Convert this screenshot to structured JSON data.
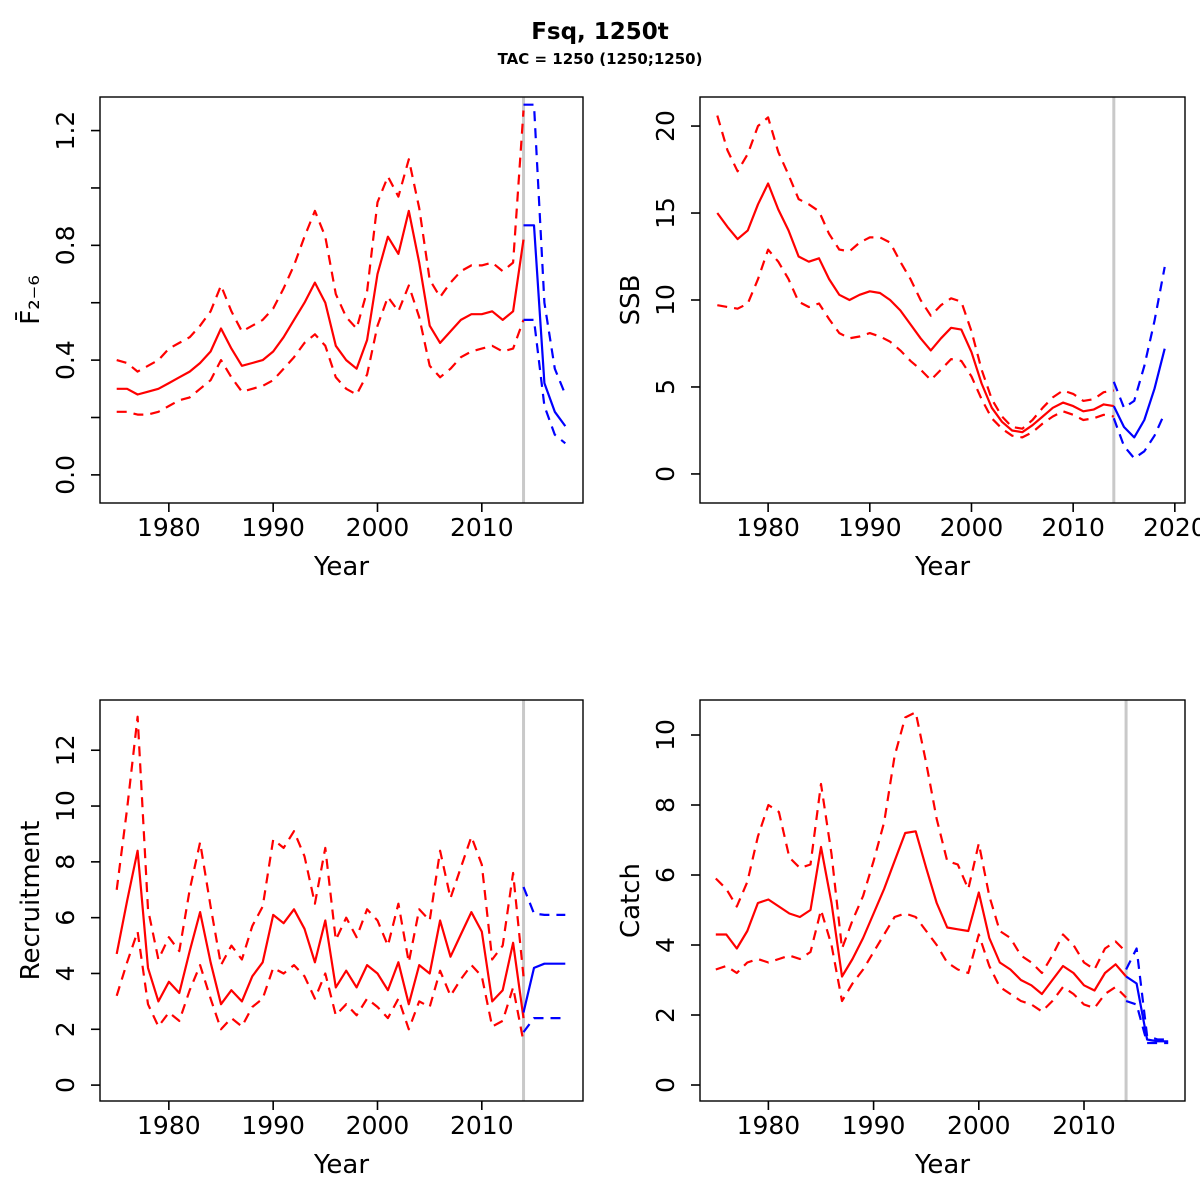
{
  "title": "Fsq, 1250t",
  "subtitle": "TAC = 1250 (1250;1250)",
  "colors": {
    "historic": "#ff0000",
    "forecast": "#0000ff",
    "divider": "#c9c9c9",
    "axis": "#000000",
    "background": "#ffffff"
  },
  "divider_year": 2014,
  "chart_data": [
    {
      "id": "fbar",
      "type": "line",
      "ylabel": "F̄₂₋₆",
      "xlabel": "Year",
      "xlim": [
        1973.4,
        2019.7
      ],
      "ylim": [
        -0.098,
        1.317
      ],
      "grid": false,
      "legend": "none",
      "xticks": [
        1980,
        1990,
        2000,
        2010
      ],
      "xtick_labels": [
        "1980",
        "1990",
        "2000",
        "2010"
      ],
      "yticks": [
        0,
        0.2,
        0.4,
        0.6,
        0.8,
        1.0,
        1.2
      ],
      "ytick_labels": [
        "0.0",
        "",
        "0.4",
        "",
        "0.8",
        "",
        "1.2"
      ],
      "divider_year": 2014,
      "series": [
        {
          "name": "historic-upper",
          "color": "historic",
          "style": "dashed",
          "x0": 1975,
          "y": [
            0.4,
            0.39,
            0.36,
            0.38,
            0.4,
            0.44,
            0.46,
            0.48,
            0.52,
            0.57,
            0.66,
            0.57,
            0.5,
            0.52,
            0.54,
            0.58,
            0.65,
            0.73,
            0.83,
            0.92,
            0.83,
            0.63,
            0.55,
            0.51,
            0.64,
            0.95,
            1.04,
            0.97,
            1.1,
            0.93,
            0.68,
            0.62,
            0.67,
            0.71,
            0.73,
            0.73,
            0.74,
            0.71,
            0.74,
            1.27
          ]
        },
        {
          "name": "historic-lower",
          "color": "historic",
          "style": "dashed",
          "x0": 1975,
          "y": [
            0.22,
            0.22,
            0.21,
            0.21,
            0.22,
            0.24,
            0.26,
            0.27,
            0.3,
            0.33,
            0.4,
            0.34,
            0.29,
            0.3,
            0.31,
            0.33,
            0.37,
            0.41,
            0.46,
            0.49,
            0.45,
            0.34,
            0.3,
            0.28,
            0.35,
            0.52,
            0.62,
            0.57,
            0.66,
            0.55,
            0.38,
            0.34,
            0.37,
            0.41,
            0.43,
            0.44,
            0.45,
            0.43,
            0.44,
            0.54
          ]
        },
        {
          "name": "historic-median",
          "color": "historic",
          "style": "solid",
          "x0": 1975,
          "y": [
            0.3,
            0.3,
            0.28,
            0.29,
            0.3,
            0.32,
            0.34,
            0.36,
            0.39,
            0.43,
            0.51,
            0.44,
            0.38,
            0.39,
            0.4,
            0.43,
            0.48,
            0.54,
            0.6,
            0.67,
            0.6,
            0.45,
            0.4,
            0.37,
            0.47,
            0.7,
            0.83,
            0.77,
            0.92,
            0.74,
            0.52,
            0.46,
            0.5,
            0.54,
            0.56,
            0.56,
            0.57,
            0.54,
            0.57,
            0.82
          ]
        },
        {
          "name": "forecast-upper",
          "color": "forecast",
          "style": "dashed",
          "x0": 2014,
          "y": [
            1.29,
            1.29,
            0.6,
            0.37,
            0.28
          ]
        },
        {
          "name": "forecast-lower",
          "color": "forecast",
          "style": "dashed",
          "x0": 2014,
          "y": [
            0.54,
            0.54,
            0.24,
            0.14,
            0.11
          ]
        },
        {
          "name": "forecast-median",
          "color": "forecast",
          "style": "solid",
          "x0": 2014,
          "y": [
            0.87,
            0.87,
            0.32,
            0.22,
            0.17
          ]
        }
      ]
    },
    {
      "id": "ssb",
      "type": "line",
      "ylabel": "SSB",
      "xlabel": "Year",
      "xlim": [
        1973.3,
        2021.0
      ],
      "ylim": [
        -1.67,
        21.67
      ],
      "grid": false,
      "legend": "none",
      "xticks": [
        1980,
        1990,
        2000,
        2010,
        2020
      ],
      "xtick_labels": [
        "1980",
        "1990",
        "2000",
        "2010",
        "2020"
      ],
      "yticks": [
        0,
        5,
        10,
        15,
        20
      ],
      "ytick_labels": [
        "0",
        "5",
        "10",
        "15",
        "20"
      ],
      "divider_year": 2014,
      "series": [
        {
          "name": "historic-upper",
          "color": "historic",
          "style": "dashed",
          "x0": 1975,
          "y": [
            20.6,
            18.6,
            17.4,
            18.4,
            20.0,
            20.5,
            18.5,
            17.2,
            15.8,
            15.5,
            15.1,
            13.8,
            12.9,
            12.8,
            13.3,
            13.6,
            13.6,
            13.3,
            12.2,
            11.2,
            10.0,
            9.1,
            9.7,
            10.1,
            9.9,
            8.2,
            6.0,
            4.3,
            3.3,
            2.7,
            2.6,
            3.1,
            3.8,
            4.4,
            4.8,
            4.6,
            4.2,
            4.3,
            4.7,
            4.8
          ]
        },
        {
          "name": "historic-lower",
          "color": "historic",
          "style": "dashed",
          "x0": 1975,
          "y": [
            9.7,
            9.6,
            9.5,
            9.8,
            11.2,
            12.9,
            12.2,
            11.2,
            9.9,
            9.6,
            9.8,
            8.9,
            8.1,
            7.8,
            7.9,
            8.1,
            7.9,
            7.6,
            7.1,
            6.5,
            6.0,
            5.4,
            6.0,
            6.6,
            6.5,
            5.6,
            4.3,
            3.2,
            2.6,
            2.2,
            2.1,
            2.4,
            2.9,
            3.3,
            3.6,
            3.4,
            3.1,
            3.2,
            3.4,
            3.3
          ]
        },
        {
          "name": "historic-median",
          "color": "historic",
          "style": "solid",
          "x0": 1975,
          "y": [
            15.0,
            14.2,
            13.5,
            14.0,
            15.5,
            16.7,
            15.2,
            14.0,
            12.5,
            12.2,
            12.4,
            11.2,
            10.3,
            10.0,
            10.3,
            10.5,
            10.4,
            10.0,
            9.4,
            8.6,
            7.8,
            7.1,
            7.8,
            8.4,
            8.3,
            7.0,
            5.2,
            3.8,
            3.0,
            2.5,
            2.4,
            2.8,
            3.3,
            3.8,
            4.1,
            3.9,
            3.6,
            3.7,
            4.0,
            3.9
          ]
        },
        {
          "name": "forecast-upper",
          "color": "forecast",
          "style": "dashed",
          "x0": 2014,
          "y": [
            5.3,
            3.8,
            4.2,
            6.2,
            8.8,
            11.9
          ]
        },
        {
          "name": "forecast-lower",
          "color": "forecast",
          "style": "dashed",
          "x0": 2014,
          "y": [
            3.2,
            1.6,
            0.9,
            1.3,
            2.2,
            3.5
          ]
        },
        {
          "name": "forecast-median",
          "color": "forecast",
          "style": "solid",
          "x0": 2014,
          "y": [
            3.9,
            2.7,
            2.1,
            3.1,
            4.9,
            7.2
          ]
        }
      ]
    },
    {
      "id": "recruitment",
      "type": "line",
      "ylabel": "Recruitment",
      "xlabel": "Year",
      "xlim": [
        1973.4,
        2019.7
      ],
      "ylim": [
        -0.57,
        13.8
      ],
      "grid": false,
      "legend": "none",
      "xticks": [
        1980,
        1990,
        2000,
        2010
      ],
      "xtick_labels": [
        "1980",
        "1990",
        "2000",
        "2010"
      ],
      "yticks": [
        0,
        2,
        4,
        6,
        8,
        10,
        12
      ],
      "ytick_labels": [
        "0",
        "2",
        "4",
        "6",
        "8",
        "10",
        "12"
      ],
      "divider_year": 2014,
      "series": [
        {
          "name": "historic-upper",
          "color": "historic",
          "style": "dashed",
          "x0": 1975,
          "y": [
            7.0,
            9.9,
            13.2,
            6.3,
            4.5,
            5.3,
            4.8,
            7.0,
            8.7,
            6.4,
            4.3,
            5.0,
            4.5,
            5.7,
            6.4,
            8.8,
            8.5,
            9.1,
            8.2,
            6.5,
            8.5,
            5.2,
            6.0,
            5.3,
            6.3,
            5.9,
            5.0,
            6.5,
            4.4,
            6.3,
            5.9,
            8.4,
            6.7,
            7.8,
            8.9,
            7.9,
            4.5,
            5.0,
            7.6,
            3.9
          ]
        },
        {
          "name": "historic-lower",
          "color": "historic",
          "style": "dashed",
          "x0": 1975,
          "y": [
            3.2,
            4.4,
            5.5,
            2.9,
            2.1,
            2.6,
            2.3,
            3.4,
            4.3,
            3.1,
            2.0,
            2.4,
            2.1,
            2.8,
            3.1,
            4.2,
            4.0,
            4.3,
            3.9,
            3.1,
            4.0,
            2.5,
            2.9,
            2.5,
            3.1,
            2.8,
            2.4,
            3.1,
            2.0,
            3.0,
            2.8,
            4.1,
            3.2,
            3.8,
            4.3,
            3.9,
            2.1,
            2.3,
            3.5,
            1.55
          ]
        },
        {
          "name": "historic-median",
          "color": "historic",
          "style": "solid",
          "x0": 1975,
          "y": [
            4.7,
            6.6,
            8.4,
            4.2,
            3.0,
            3.7,
            3.3,
            4.8,
            6.2,
            4.4,
            2.9,
            3.4,
            3.0,
            3.9,
            4.4,
            6.1,
            5.8,
            6.3,
            5.6,
            4.4,
            5.9,
            3.5,
            4.1,
            3.5,
            4.3,
            4.0,
            3.4,
            4.4,
            2.9,
            4.3,
            4.0,
            5.9,
            4.6,
            5.4,
            6.2,
            5.5,
            3.0,
            3.4,
            5.1,
            2.4
          ]
        },
        {
          "name": "forecast-upper",
          "color": "forecast",
          "style": "dashed",
          "x0": 2014,
          "y": [
            7.1,
            6.15,
            6.1,
            6.1,
            6.1
          ]
        },
        {
          "name": "forecast-lower",
          "color": "forecast",
          "style": "dashed",
          "x0": 2014,
          "y": [
            1.9,
            2.4,
            2.4,
            2.4,
            2.4
          ]
        },
        {
          "name": "forecast-median",
          "color": "forecast",
          "style": "solid",
          "x0": 2014,
          "y": [
            2.6,
            4.2,
            4.35,
            4.35,
            4.35
          ]
        }
      ]
    },
    {
      "id": "catch",
      "type": "line",
      "ylabel": "Catch",
      "xlabel": "Year",
      "xlim": [
        1973.5,
        2019.6
      ],
      "ylim": [
        -0.457,
        11.0
      ],
      "grid": false,
      "legend": "none",
      "xticks": [
        1980,
        1990,
        2000,
        2010
      ],
      "xtick_labels": [
        "1980",
        "1990",
        "2000",
        "2010"
      ],
      "yticks": [
        0,
        2,
        4,
        6,
        8,
        10
      ],
      "ytick_labels": [
        "0",
        "2",
        "4",
        "6",
        "8",
        "10"
      ],
      "divider_year": 2014,
      "series": [
        {
          "name": "historic-upper",
          "color": "historic",
          "style": "dashed",
          "x0": 1975,
          "y": [
            5.9,
            5.6,
            5.1,
            5.8,
            7.1,
            8.0,
            7.8,
            6.5,
            6.2,
            6.3,
            8.6,
            6.6,
            3.9,
            4.7,
            5.4,
            6.4,
            7.5,
            9.4,
            10.5,
            10.65,
            9.2,
            7.6,
            6.4,
            6.3,
            5.6,
            6.9,
            5.4,
            4.4,
            4.2,
            3.7,
            3.5,
            3.2,
            3.7,
            4.3,
            4.0,
            3.5,
            3.3,
            3.9,
            4.1,
            3.8
          ]
        },
        {
          "name": "historic-lower",
          "color": "historic",
          "style": "dashed",
          "x0": 1975,
          "y": [
            3.3,
            3.4,
            3.2,
            3.5,
            3.6,
            3.5,
            3.6,
            3.7,
            3.6,
            3.8,
            5.0,
            4.0,
            2.4,
            2.9,
            3.3,
            3.8,
            4.3,
            4.8,
            4.9,
            4.8,
            4.4,
            4.0,
            3.5,
            3.3,
            3.2,
            4.3,
            3.4,
            2.8,
            2.6,
            2.4,
            2.3,
            2.1,
            2.4,
            2.8,
            2.6,
            2.3,
            2.2,
            2.6,
            2.8,
            2.5
          ]
        },
        {
          "name": "historic-median",
          "color": "historic",
          "style": "solid",
          "x0": 1975,
          "y": [
            4.3,
            4.3,
            3.9,
            4.4,
            5.2,
            5.3,
            5.1,
            4.9,
            4.8,
            5.0,
            6.8,
            5.2,
            3.1,
            3.6,
            4.2,
            4.9,
            5.6,
            6.4,
            7.2,
            7.25,
            6.2,
            5.2,
            4.5,
            4.45,
            4.4,
            5.5,
            4.2,
            3.5,
            3.3,
            3.0,
            2.85,
            2.6,
            3.0,
            3.4,
            3.2,
            2.85,
            2.7,
            3.2,
            3.45,
            3.1
          ]
        },
        {
          "name": "forecast-upper",
          "color": "forecast",
          "style": "dashed",
          "x0": 2014,
          "y": [
            3.3,
            3.9,
            1.4,
            1.3,
            1.3
          ]
        },
        {
          "name": "forecast-lower",
          "color": "forecast",
          "style": "dashed",
          "x0": 2014,
          "y": [
            2.4,
            2.3,
            1.2,
            1.2,
            1.2
          ]
        },
        {
          "name": "forecast-median",
          "color": "forecast",
          "style": "solid",
          "x0": 2014,
          "y": [
            3.1,
            2.9,
            1.3,
            1.25,
            1.25
          ]
        }
      ]
    }
  ]
}
